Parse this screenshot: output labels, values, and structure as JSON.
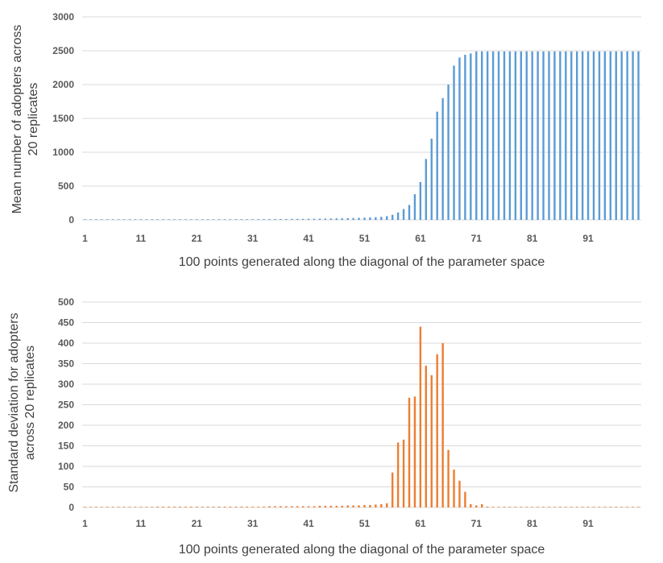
{
  "chart_data": [
    {
      "type": "bar",
      "xlabel": "100 points generated along the diagonal of the parameter space",
      "ylabel_lines": [
        "Mean number of adopters across",
        "20 replicates"
      ],
      "ylim": [
        0,
        3000
      ],
      "yticks": [
        0,
        500,
        1000,
        1500,
        2000,
        2500,
        3000
      ],
      "xtick_labels": [
        "1",
        "11",
        "21",
        "31",
        "41",
        "51",
        "61",
        "71",
        "81",
        "91"
      ],
      "grid": true,
      "color": "#5B9BD5",
      "x": [
        1,
        2,
        3,
        4,
        5,
        6,
        7,
        8,
        9,
        10,
        11,
        12,
        13,
        14,
        15,
        16,
        17,
        18,
        19,
        20,
        21,
        22,
        23,
        24,
        25,
        26,
        27,
        28,
        29,
        30,
        31,
        32,
        33,
        34,
        35,
        36,
        37,
        38,
        39,
        40,
        41,
        42,
        43,
        44,
        45,
        46,
        47,
        48,
        49,
        50,
        51,
        52,
        53,
        54,
        55,
        56,
        57,
        58,
        59,
        60,
        61,
        62,
        63,
        64,
        65,
        66,
        67,
        68,
        69,
        70,
        71,
        72,
        73,
        74,
        75,
        76,
        77,
        78,
        79,
        80,
        81,
        82,
        83,
        84,
        85,
        86,
        87,
        88,
        89,
        90,
        91,
        92,
        93,
        94,
        95,
        96,
        97,
        98,
        99,
        100
      ],
      "values": [
        3,
        3,
        3,
        3,
        4,
        4,
        4,
        4,
        5,
        5,
        5,
        5,
        6,
        6,
        6,
        6,
        7,
        7,
        7,
        7,
        8,
        8,
        8,
        8,
        9,
        9,
        9,
        10,
        10,
        10,
        10,
        11,
        11,
        12,
        12,
        13,
        13,
        14,
        14,
        15,
        16,
        17,
        18,
        19,
        20,
        22,
        24,
        26,
        28,
        30,
        33,
        36,
        40,
        45,
        55,
        75,
        110,
        160,
        220,
        380,
        560,
        900,
        1200,
        1600,
        1800,
        2000,
        2280,
        2400,
        2440,
        2460,
        2490,
        2490,
        2490,
        2490,
        2490,
        2490,
        2490,
        2490,
        2490,
        2490,
        2490,
        2490,
        2490,
        2490,
        2490,
        2490,
        2490,
        2490,
        2490,
        2490,
        2490,
        2490,
        2490,
        2490,
        2490,
        2490,
        2490,
        2490,
        2490,
        2490
      ]
    },
    {
      "type": "bar",
      "xlabel": "100 points generated along the diagonal of the parameter space",
      "ylabel_lines": [
        "Standard deviation for adopters",
        "across 20 replicates"
      ],
      "ylim": [
        0,
        500
      ],
      "yticks": [
        0,
        50,
        100,
        150,
        200,
        250,
        300,
        350,
        400,
        450,
        500
      ],
      "xtick_labels": [
        "1",
        "11",
        "21",
        "31",
        "41",
        "51",
        "61",
        "71",
        "81",
        "91"
      ],
      "grid": true,
      "color": "#ED7D31",
      "x": [
        1,
        2,
        3,
        4,
        5,
        6,
        7,
        8,
        9,
        10,
        11,
        12,
        13,
        14,
        15,
        16,
        17,
        18,
        19,
        20,
        21,
        22,
        23,
        24,
        25,
        26,
        27,
        28,
        29,
        30,
        31,
        32,
        33,
        34,
        35,
        36,
        37,
        38,
        39,
        40,
        41,
        42,
        43,
        44,
        45,
        46,
        47,
        48,
        49,
        50,
        51,
        52,
        53,
        54,
        55,
        56,
        57,
        58,
        59,
        60,
        61,
        62,
        63,
        64,
        65,
        66,
        67,
        68,
        69,
        70,
        71,
        72,
        73,
        74,
        75,
        76,
        77,
        78,
        79,
        80,
        81,
        82,
        83,
        84,
        85,
        86,
        87,
        88,
        89,
        90,
        91,
        92,
        93,
        94,
        95,
        96,
        97,
        98,
        99,
        100
      ],
      "values": [
        1,
        1,
        1,
        1,
        1,
        1,
        1,
        1,
        1,
        1,
        1,
        1,
        1,
        2,
        2,
        2,
        2,
        2,
        2,
        2,
        2,
        2,
        2,
        2,
        2,
        2,
        2,
        2,
        2,
        2,
        2,
        2,
        2,
        3,
        3,
        3,
        3,
        3,
        3,
        3,
        3,
        3,
        4,
        4,
        4,
        4,
        4,
        5,
        5,
        5,
        6,
        6,
        7,
        8,
        10,
        85,
        158,
        165,
        267,
        270,
        440,
        345,
        322,
        373,
        400,
        140,
        92,
        65,
        38,
        8,
        5,
        8,
        2,
        0,
        0,
        0,
        0,
        0,
        0,
        0,
        0,
        0,
        0,
        0,
        0,
        0,
        0,
        0,
        0,
        0,
        0,
        0,
        0,
        0,
        0,
        0,
        0,
        0,
        0,
        0
      ]
    }
  ]
}
